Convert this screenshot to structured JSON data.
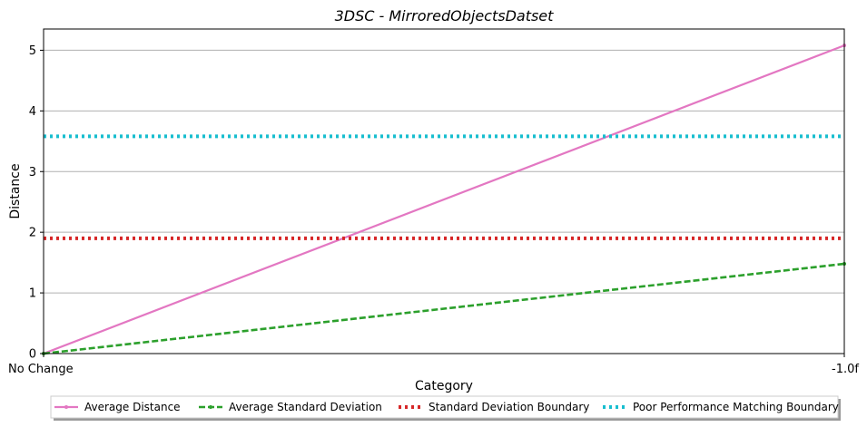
{
  "chart_data": {
    "type": "line",
    "title": "3DSC - MirroredObjectsDatset",
    "xlabel": "Category",
    "ylabel": "Distance",
    "categories": [
      "No Change",
      "-1.0f"
    ],
    "ylim": [
      0,
      5.35
    ],
    "yticks": [
      0,
      1,
      2,
      3,
      4,
      5
    ],
    "grid": "horizontal",
    "legend_position": "bottom-center",
    "series": [
      {
        "name": "Average Distance",
        "values": [
          0.0,
          5.08
        ],
        "color": "#e377c2",
        "style": "solid-marker"
      },
      {
        "name": "Average Standard Deviation",
        "values": [
          0.0,
          1.48
        ],
        "color": "#2ca02c",
        "style": "dashed-marker"
      },
      {
        "name": "Standard Deviation Boundary",
        "values": [
          1.9,
          1.9
        ],
        "color": "#d62728",
        "style": "dotted"
      },
      {
        "name": "Poor Performance Matching Boundary",
        "values": [
          3.58,
          3.58
        ],
        "color": "#17becf",
        "style": "dotted"
      }
    ]
  }
}
